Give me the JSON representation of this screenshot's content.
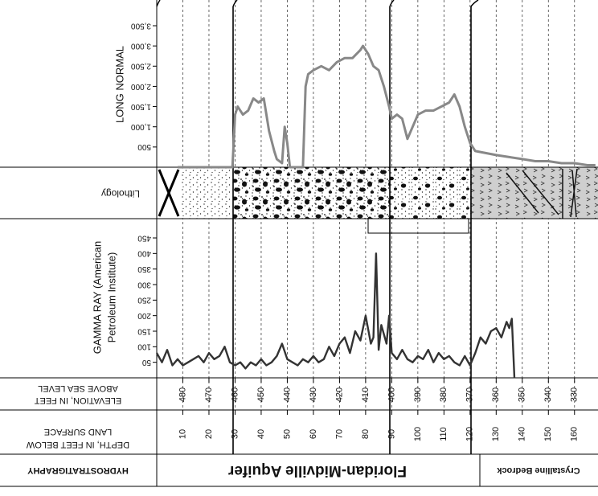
{
  "header": {
    "title": "HYDROSTRATIGRAPHY",
    "units": [
      "Floridan-Midville Aquifer",
      "Crystalline Bedrock"
    ]
  },
  "depth_axis": {
    "label": [
      "DEPTH, IN FEET BELOW",
      "LAND SURFACE"
    ],
    "xlim": [
      0,
      169
    ],
    "ticks": [
      10,
      20,
      30,
      40,
      50,
      60,
      70,
      80,
      90,
      100,
      110,
      120,
      130,
      140,
      150,
      160
    ]
  },
  "elevation_axis": {
    "label": [
      "ELEVATION, IN FEET",
      "ABOVE SEA LEVEL"
    ],
    "xlim": [
      490,
      321
    ],
    "ticks": [
      480,
      470,
      460,
      450,
      440,
      430,
      420,
      410,
      400,
      390,
      380,
      370,
      360,
      350,
      340,
      330
    ]
  },
  "lithology": {
    "label": "Lithology"
  },
  "chart_data": [
    {
      "type": "line",
      "title": [
        "GAMMA RAY (American",
        "Petroleum Institute)"
      ],
      "color": "#333333",
      "xlim": [
        0,
        169
      ],
      "ylim": [
        0,
        450
      ],
      "yticks": [
        50,
        100,
        150,
        200,
        250,
        300,
        350,
        400,
        450
      ],
      "x": [
        0,
        2,
        4,
        6,
        8,
        10,
        12,
        14,
        16,
        18,
        20,
        22,
        24,
        26,
        28,
        30,
        32,
        34,
        36,
        38,
        40,
        42,
        44,
        46,
        48,
        50,
        52,
        54,
        56,
        58,
        60,
        62,
        64,
        66,
        68,
        70,
        72,
        74,
        76,
        78,
        80,
        82,
        83,
        84,
        85,
        86,
        88,
        89,
        90,
        92,
        94,
        96,
        98,
        100,
        102,
        104,
        106,
        108,
        110,
        112,
        114,
        116,
        118,
        120,
        122,
        124,
        126,
        128,
        130,
        132,
        134,
        135,
        136,
        137
      ],
      "values": [
        80,
        50,
        90,
        40,
        60,
        40,
        50,
        60,
        70,
        50,
        80,
        60,
        70,
        100,
        50,
        40,
        50,
        30,
        50,
        40,
        60,
        40,
        50,
        70,
        110,
        60,
        50,
        40,
        60,
        50,
        70,
        50,
        60,
        100,
        70,
        110,
        130,
        80,
        150,
        120,
        200,
        110,
        130,
        400,
        90,
        170,
        110,
        200,
        80,
        60,
        90,
        60,
        50,
        70,
        60,
        90,
        50,
        80,
        60,
        70,
        50,
        40,
        70,
        40,
        80,
        130,
        110,
        150,
        160,
        130,
        180,
        160,
        190,
        0
      ]
    },
    {
      "type": "line",
      "title": "LONG NORMAL",
      "color": "#888888",
      "xlim": [
        0,
        169
      ],
      "ylim": [
        0,
        3500
      ],
      "yticks": [
        500,
        {
          "value": 1000,
          "label": "1,000"
        },
        {
          "value": 1500,
          "label": "1,500"
        },
        {
          "value": 2000,
          "label": "2,000"
        },
        {
          "value": 2500,
          "label": "2,500"
        },
        {
          "value": 3000,
          "label": "3,000"
        },
        {
          "value": 3500,
          "label": "3,500"
        }
      ],
      "x": [
        8,
        29,
        30,
        31,
        33,
        35,
        37,
        39,
        41,
        43,
        45,
        46,
        48,
        49,
        50,
        51,
        54,
        56,
        57,
        58,
        60,
        63,
        66,
        69,
        72,
        75,
        78,
        79,
        81,
        83,
        85,
        87,
        89,
        90,
        92,
        94,
        96,
        98,
        100,
        103,
        106,
        109,
        112,
        114,
        116,
        118,
        120,
        122,
        126,
        130,
        135,
        140,
        145,
        150,
        155,
        160,
        165,
        168
      ],
      "values": [
        0,
        0,
        1300,
        1500,
        1300,
        1400,
        1700,
        1600,
        1700,
        900,
        400,
        200,
        100,
        1000,
        600,
        0,
        0,
        0,
        2000,
        2300,
        2400,
        2500,
        2400,
        2600,
        2700,
        2700,
        2900,
        3000,
        2800,
        2500,
        2400,
        2000,
        1500,
        1200,
        1300,
        1200,
        700,
        1000,
        1300,
        1400,
        1400,
        1500,
        1600,
        1800,
        1500,
        1000,
        600,
        400,
        350,
        300,
        250,
        200,
        150,
        150,
        100,
        100,
        50,
        50
      ]
    }
  ]
}
